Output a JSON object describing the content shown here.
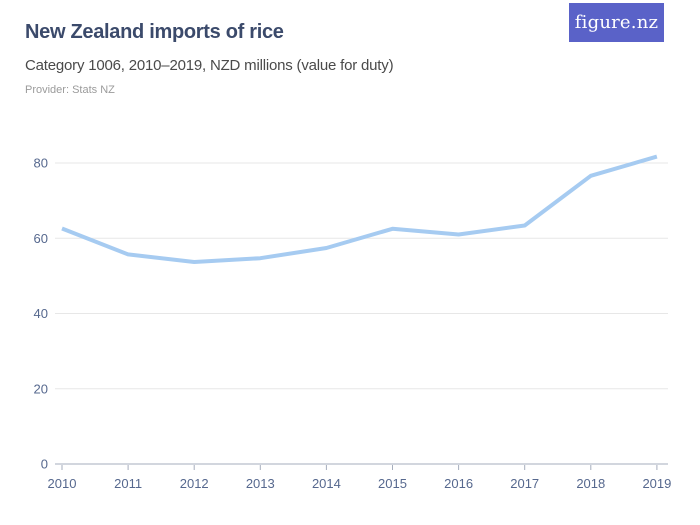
{
  "header": {
    "title": "New Zealand imports of rice",
    "subtitle": "Category 1006, 2010–2019, NZD millions (value for duty)",
    "provider": "Provider: Stats NZ",
    "logo_text": "figure.nz"
  },
  "colors": {
    "logo_background": "#5a62c8",
    "logo_text": "#ffffff",
    "title": "#3b4a6b",
    "subtitle": "#4a4a4a",
    "provider": "#9b9b9b",
    "axis_label": "#56688e",
    "gridline": "#e7e7e7",
    "axis_line": "#a6aebd",
    "line": "#a6cbf1"
  },
  "chart_data": {
    "type": "line",
    "title": "New Zealand imports of rice",
    "subtitle": "Category 1006, 2010–2019, NZD millions (value for duty)",
    "xlabel": "",
    "ylabel": "NZD millions (value for duty)",
    "categories": [
      "2010",
      "2011",
      "2012",
      "2013",
      "2014",
      "2015",
      "2016",
      "2017",
      "2018",
      "2019"
    ],
    "values": [
      62.6,
      55.7,
      53.7,
      54.7,
      57.4,
      62.5,
      61.0,
      63.4,
      76.6,
      81.7
    ],
    "ylim": [
      0,
      80
    ],
    "y_ticks": [
      0,
      20,
      40,
      60,
      80
    ],
    "grid": "horizontal",
    "legend": "none"
  }
}
